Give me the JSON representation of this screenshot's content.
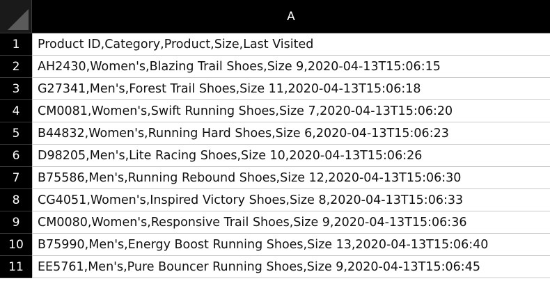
{
  "spreadsheet": {
    "column_header": "A",
    "rows": [
      {
        "num": "1",
        "value": "Product ID,Category,Product,Size,Last Visited"
      },
      {
        "num": "2",
        "value": "AH2430,Women's,Blazing Trail Shoes,Size 9,2020-04-13T15:06:15"
      },
      {
        "num": "3",
        "value": "G27341,Men's,Forest Trail Shoes,Size 11,2020-04-13T15:06:18"
      },
      {
        "num": "4",
        "value": "CM0081,Women's,Swift Running Shoes,Size 7,2020-04-13T15:06:20"
      },
      {
        "num": "5",
        "value": "B44832,Women's,Running Hard Shoes,Size 6,2020-04-13T15:06:23"
      },
      {
        "num": "6",
        "value": "D98205,Men's,Lite Racing Shoes,Size 10,2020-04-13T15:06:26"
      },
      {
        "num": "7",
        "value": "B75586,Men's,Running Rebound Shoes,Size 12,2020-04-13T15:06:30"
      },
      {
        "num": "8",
        "value": "CG4051,Women's,Inspired Victory Shoes,Size 8,2020-04-13T15:06:33"
      },
      {
        "num": "9",
        "value": "CM0080,Women's,Responsive Trail Shoes,Size 9,2020-04-13T15:06:36"
      },
      {
        "num": "10",
        "value": "B75990,Men's,Energy Boost Running Shoes,Size 13,2020-04-13T15:06:40"
      },
      {
        "num": "11",
        "value": "EE5761,Men's,Pure Bouncer Running Shoes,Size 9,2020-04-13T15:06:45"
      }
    ]
  }
}
